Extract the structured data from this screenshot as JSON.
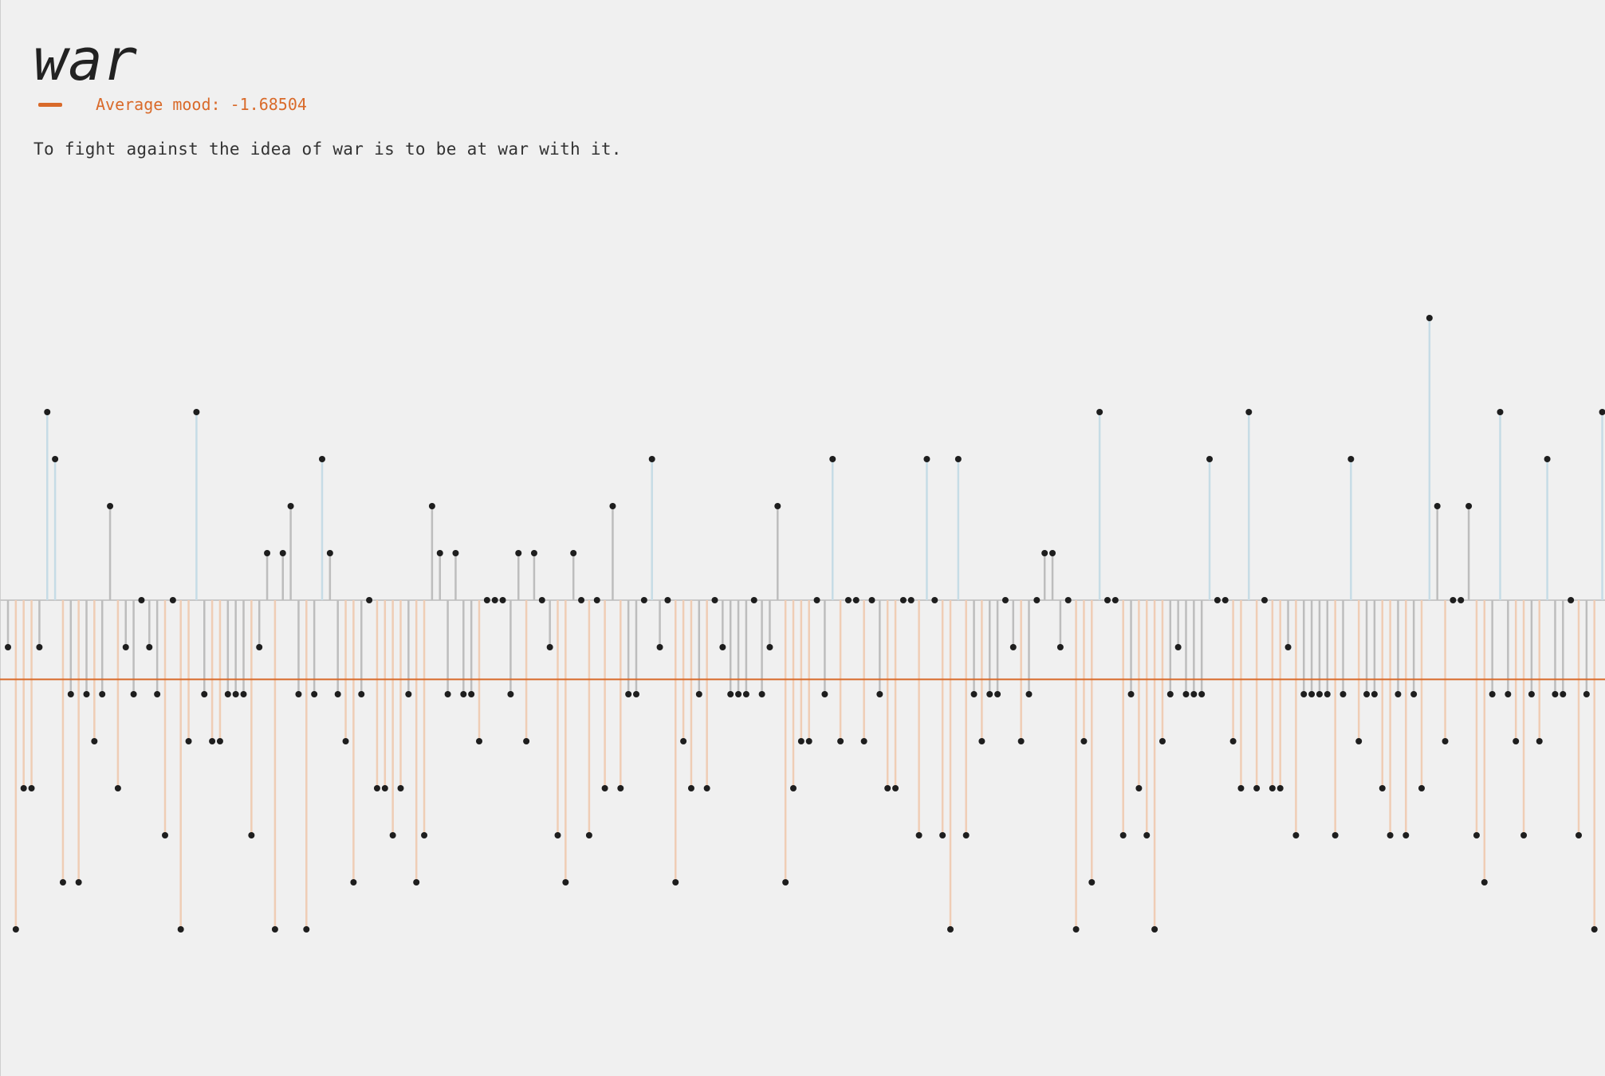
{
  "header": {
    "title": "war",
    "legend_label": "Average mood: -1.68504",
    "quote": "To fight against the idea of war is to be at war with it."
  },
  "colors": {
    "positive": "#c6dce6",
    "neutral": "#bdbdbd",
    "negative": "#efcdb5",
    "average": "#d96a2a",
    "dot": "#1e1e1e",
    "baseline": "#c8c8c8"
  },
  "chart_data": {
    "type": "scatter",
    "title": "war",
    "xlabel": "",
    "ylabel": "",
    "ylim": [
      -7,
      7
    ],
    "average": -1.68504,
    "values": [
      -1,
      -7,
      -4,
      -4,
      -1,
      4,
      3,
      -6,
      -2,
      -6,
      -2,
      -3,
      -2,
      2,
      -4,
      -1,
      -2,
      0,
      -1,
      -2,
      -5,
      0,
      -7,
      -3,
      4,
      -2,
      -3,
      -3,
      -2,
      -2,
      -2,
      -5,
      -1,
      1,
      -7,
      1,
      2,
      -2,
      -7,
      -2,
      3,
      1,
      -2,
      -3,
      -6,
      -2,
      0,
      -4,
      -4,
      -5,
      -4,
      -2,
      -6,
      -5,
      2,
      1,
      -2,
      1,
      -2,
      -2,
      -3,
      0,
      0,
      0,
      -2,
      1,
      -3,
      1,
      0,
      -1,
      -5,
      -6,
      1,
      0,
      -5,
      0,
      -4,
      2,
      -4,
      -2,
      -2,
      0,
      3,
      -1,
      0,
      -6,
      -3,
      -4,
      -2,
      -4,
      0,
      -1,
      -2,
      -2,
      -2,
      0,
      -2,
      -1,
      2,
      -6,
      -4,
      -3,
      -3,
      0,
      -2,
      3,
      -3,
      0,
      0,
      -3,
      0,
      -2,
      -4,
      -4,
      0,
      0,
      -5,
      3,
      0,
      -5,
      -7,
      3,
      -5,
      -2,
      -3,
      -2,
      -2,
      0,
      -1,
      -3,
      -2,
      0,
      1,
      1,
      -1,
      0,
      -7,
      -3,
      -6,
      4,
      0,
      0,
      -5,
      -2,
      -4,
      -5,
      -7,
      -3,
      -2,
      -1,
      -2,
      -2,
      -2,
      3,
      0,
      0,
      -3,
      -4,
      4,
      -4,
      0,
      -4,
      -4,
      -1,
      -5,
      -2,
      -2,
      -2,
      -2,
      -5,
      -2,
      3,
      -3,
      -2,
      -2,
      -4,
      -5,
      -2,
      -5,
      -2,
      -4,
      6,
      2,
      -3,
      0,
      0,
      2,
      -5,
      -6,
      -2,
      4,
      -2,
      -3,
      -5,
      -2,
      -3,
      3,
      -2,
      -2,
      0,
      -5,
      -2,
      -7,
      4
    ]
  }
}
